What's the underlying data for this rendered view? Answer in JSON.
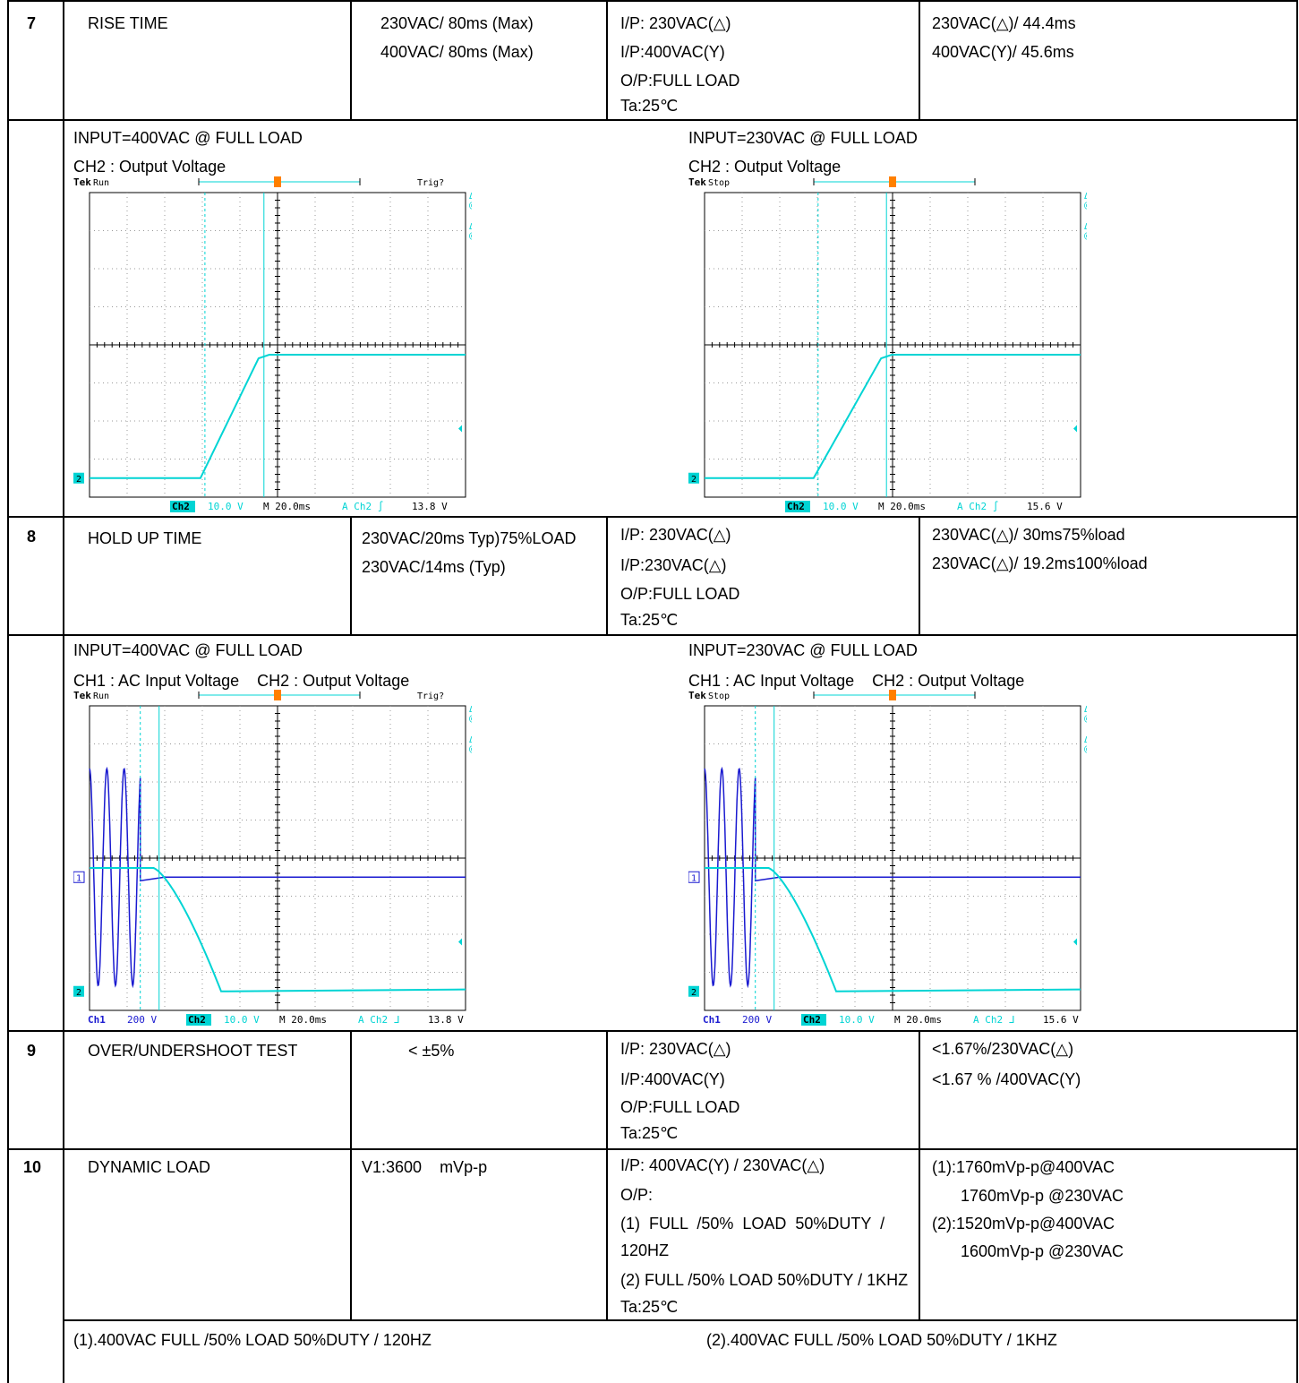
{
  "colors": {
    "cyan": "#00d4d4",
    "blue": "#1a1ad0",
    "orange": "#ff8000",
    "border": "#000000"
  },
  "rows": {
    "r7": {
      "num": "7",
      "item": "RISE TIME",
      "spec": [
        "230VAC/ 80ms (Max)",
        "400VAC/ 80ms (Max)"
      ],
      "cond": [
        "I/P: 230VAC(△)",
        "I/P:400VAC(Y)",
        "O/P:FULL LOAD",
        "Ta:25℃"
      ],
      "result": [
        "230VAC(△)/ 44.4ms",
        "400VAC(Y)/ 45.6ms"
      ],
      "left_caption": [
        "INPUT=400VAC @ FULL LOAD",
        "CH2 : Output Voltage"
      ],
      "right_caption": [
        "INPUT=230VAC @ FULL LOAD",
        "CH2 : Output Voltage"
      ]
    },
    "r8": {
      "num": "8",
      "item": "HOLD UP TIME",
      "spec": [
        "230VAC/20ms Typ)75%LOAD",
        "230VAC/14ms (Typ)"
      ],
      "cond": [
        "I/P: 230VAC(△)",
        "I/P:230VAC(△)",
        "O/P:FULL LOAD",
        "Ta:25℃"
      ],
      "result": [
        "230VAC(△)/ 30ms75%load",
        "230VAC(△)/ 19.2ms100%load"
      ],
      "left_caption": [
        "INPUT=400VAC @ FULL LOAD",
        "CH1 : AC Input Voltage    CH2 : Output Voltage"
      ],
      "right_caption": [
        "INPUT=230VAC @ FULL LOAD",
        "CH1 : AC Input Voltage    CH2 : Output Voltage"
      ]
    },
    "r9": {
      "num": "9",
      "item": "OVER/UNDERSHOOT TEST",
      "spec": "< ±5%",
      "cond": [
        "I/P: 230VAC(△)",
        "I/P:400VAC(Y)",
        "O/P:FULL LOAD",
        "Ta:25℃"
      ],
      "result": [
        "<1.67%/230VAC(△)",
        "<1.67 % /400VAC(Y)"
      ]
    },
    "r10": {
      "num": "10",
      "item": "DYNAMIC LOAD",
      "spec": "V1:3600    mVp-p",
      "cond": [
        "I/P: 400VAC(Y) / 230VAC(△)",
        "O/P:",
        "(1)  FULL  /50%  LOAD  50%DUTY  /",
        "120HZ",
        "(2) FULL /50% LOAD 50%DUTY / 1KHZ",
        "Ta:25℃"
      ],
      "result": [
        "(1):1760mVp-p@400VAC",
        "1760mVp-p @230VAC",
        "(2):1520mVp-p@400VAC",
        "1600mVp-p @230VAC"
      ],
      "left_caption": "(1).400VAC FULL /50% LOAD 50%DUTY / 120HZ",
      "right_caption": "(2).400VAC FULL /50% LOAD 50%DUTY / 1KHZ"
    }
  },
  "scopes": {
    "rise_400": {
      "brand": "Tek",
      "state": "Run",
      "trig": "Trig?",
      "r1": [
        "Δ:",
        "28.8 V"
      ],
      "r2": [
        "@:",
        "32.4 V"
      ],
      "r3": [
        "Δ:",
        "45.6ms"
      ],
      "r4": [
        "@:",
        "29.2ms"
      ],
      "ch1": "",
      "ch1_scale": "",
      "ch2": "Ch2",
      "ch2_scale": "10.0 V",
      "time": "M 20.0ms",
      "trig_src": "A  Ch2  ∫",
      "trig_level": "13.8 V",
      "rise_start_ms": 59,
      "rise_end_ms": 88,
      "start_v": 0,
      "end_v": 32.4
    },
    "rise_230": {
      "brand": "Tek",
      "state": "Stop",
      "trig": "",
      "r1": [
        "Δ:",
        "29.0 V"
      ],
      "r2": [
        "@:",
        "3.40 V"
      ],
      "r3": [
        "Δ:",
        "44.4ms"
      ],
      "r4": [
        "@:",
        "−20.0ms"
      ],
      "ch1": "",
      "ch1_scale": "",
      "ch2": "Ch2",
      "ch2_scale": "10.0 V",
      "time": "M 20.0ms",
      "trig_src": "A  Ch2  ∫",
      "trig_level": "15.6 V",
      "rise_start_ms": 58,
      "rise_end_ms": 92,
      "start_v": 0,
      "end_v": 32.4
    },
    "hold_400": {
      "brand": "Tek",
      "state": "Run",
      "trig": "Trig?",
      "r1": [
        "Δ:",
        "3.40 V"
      ],
      "r2": [
        "@:",
        "32.6 V"
      ],
      "r3": [
        "Δ:",
        "19.6ms"
      ],
      "r4": [
        "@:",
        "−29.6ms"
      ],
      "ch1": "Ch1",
      "ch1_scale": "200 V",
      "ch2": "Ch2",
      "ch2_scale": "10.0 V",
      "time": "M 20.0ms",
      "trig_src": "A  Ch2  ᒧ",
      "trig_level": "13.8 V"
    },
    "hold_230": {
      "brand": "Tek",
      "state": "Stop",
      "trig": "",
      "r1": [
        "Δ:",
        "3.60 V"
      ],
      "r2": [
        "@:",
        "32.4 V"
      ],
      "r3": [
        "Δ:",
        "19.2ms"
      ],
      "r4": [
        "@:",
        "−26.4ms"
      ],
      "ch1": "Ch1",
      "ch1_scale": "200 V",
      "ch2": "Ch2",
      "ch2_scale": "10.0 V",
      "time": "M 20.0ms",
      "trig_src": "A  Ch2  ᒧ",
      "trig_level": "15.6 V"
    }
  }
}
